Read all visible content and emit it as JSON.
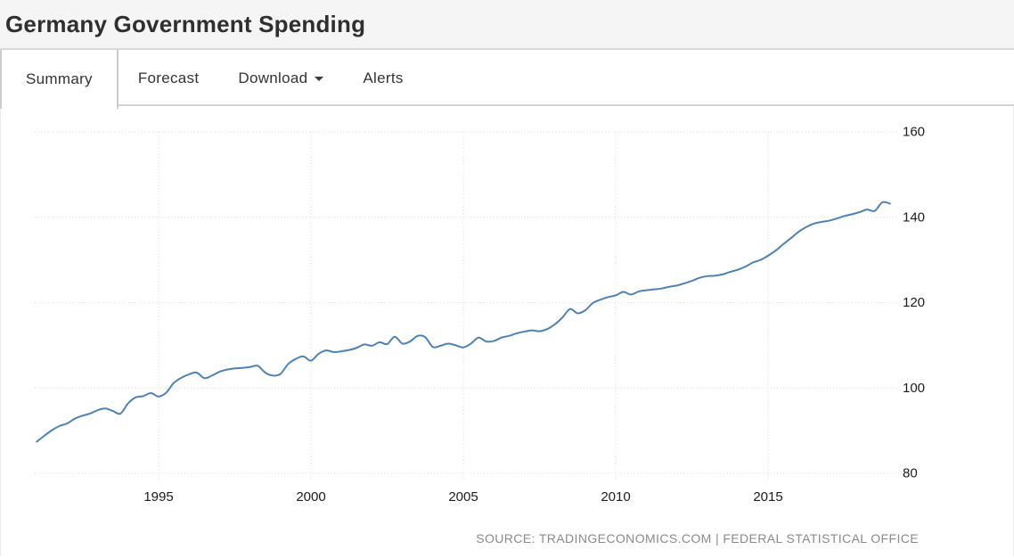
{
  "header": {
    "title": "Germany Government Spending"
  },
  "tabs": {
    "items": [
      {
        "label": "Summary",
        "active": true
      },
      {
        "label": "Forecast",
        "active": false
      },
      {
        "label": "Download",
        "active": false,
        "caret": true
      },
      {
        "label": "Alerts",
        "active": false
      }
    ]
  },
  "chart_data": {
    "type": "line",
    "title": "Germany Government Spending",
    "legend": "none",
    "grid": "dotted",
    "y_axis_side": "right",
    "x_ticks": [
      1995,
      2000,
      2005,
      2010,
      2015
    ],
    "y_ticks": [
      80,
      100,
      120,
      140,
      160
    ],
    "ylim": [
      80,
      160
    ],
    "xlim": [
      1990.85,
      2019.35
    ],
    "line_color": "#4e82b4",
    "series": [
      {
        "name": "Germany Government Spending",
        "frequency": "quarterly",
        "x_start": 1991.0,
        "x_step": 0.25,
        "values": [
          87.4,
          88.8,
          90.1,
          91.1,
          91.7,
          92.8,
          93.5,
          94.0,
          94.8,
          95.2,
          94.6,
          94.0,
          96.4,
          97.8,
          98.1,
          98.8,
          98.0,
          98.9,
          101.2,
          102.4,
          103.2,
          103.6,
          102.3,
          102.9,
          103.8,
          104.3,
          104.6,
          104.7,
          104.9,
          105.2,
          103.6,
          102.9,
          103.3,
          105.6,
          106.8,
          107.4,
          106.4,
          108.0,
          108.8,
          108.4,
          108.6,
          108.9,
          109.4,
          110.2,
          109.9,
          110.7,
          110.3,
          112.0,
          110.4,
          110.9,
          112.2,
          111.9,
          109.6,
          109.9,
          110.4,
          110.0,
          109.5,
          110.4,
          111.8,
          110.9,
          111.0,
          111.8,
          112.2,
          112.8,
          113.2,
          113.5,
          113.3,
          113.8,
          114.9,
          116.5,
          118.5,
          117.5,
          118.2,
          119.9,
          120.7,
          121.3,
          121.7,
          122.5,
          121.9,
          122.6,
          122.9,
          123.1,
          123.3,
          123.7,
          124.0,
          124.5,
          125.1,
          125.8,
          126.2,
          126.3,
          126.6,
          127.2,
          127.7,
          128.4,
          129.4,
          130.0,
          131.0,
          132.2,
          133.7,
          135.1,
          136.6,
          137.7,
          138.5,
          138.9,
          139.2,
          139.7,
          140.3,
          140.7,
          141.2,
          141.8,
          141.5,
          143.5,
          143.2
        ]
      }
    ]
  },
  "footer": {
    "source": "SOURCE: TRADINGECONOMICS.COM | FEDERAL STATISTICAL OFFICE"
  }
}
